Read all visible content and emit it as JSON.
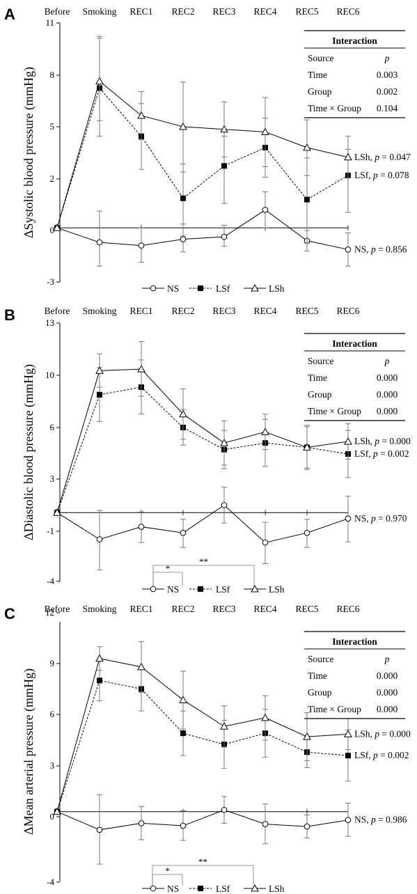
{
  "chart_data": [
    {
      "type": "line",
      "panel_label": "A",
      "ylabel": "ΔSystolic blood pressure (mmHg)",
      "categories": [
        "Before",
        "Smoking",
        "REC1",
        "REC2",
        "REC3",
        "REC4",
        "REC5",
        "REC6"
      ],
      "ylim": [
        -3,
        11
      ],
      "yticks": [
        "-3",
        "0",
        "2",
        "5",
        "8",
        "11"
      ],
      "ytick_values": [
        -3,
        0.25,
        2.25,
        5.25,
        8.25,
        11
      ],
      "reference_line": 0.35,
      "series": [
        {
          "name": "NS",
          "marker": "circle",
          "dash": "solid",
          "values": [
            0.35,
            -0.5,
            -0.7,
            -0.3,
            -0.15,
            1.05,
            -0.4,
            -0.95
          ],
          "errors": [
            0,
            1.5,
            1.05,
            0.8,
            0.6,
            0.7,
            0.65,
            1.05
          ],
          "end_label": "NS, p = 0.856"
        },
        {
          "name": "LSf",
          "marker": "square",
          "dash": "dashed",
          "values": [
            0.35,
            7.5,
            4.7,
            1.5,
            3.0,
            4.05,
            1.45,
            2.45
          ],
          "errors": [
            0,
            2.8,
            1.9,
            1.6,
            1.7,
            1.7,
            2.0,
            1.5
          ],
          "end_label": "LSf, p = 0.078"
        },
        {
          "name": "LSh",
          "marker": "triangle",
          "dash": "solid",
          "values": [
            0.35,
            7.9,
            5.9,
            5.25,
            5.1,
            4.95,
            4.05,
            3.5
          ],
          "errors": [
            0,
            2.3,
            1.4,
            2.6,
            1.6,
            2.0,
            1.6,
            1.2
          ],
          "end_label": "LSh, p = 0.047"
        }
      ],
      "legend": [
        "NS",
        "LSf",
        "LSh"
      ],
      "table": {
        "title": "Interaction",
        "header": [
          "Source",
          "p"
        ],
        "rows": [
          [
            "Time",
            "0.003"
          ],
          [
            "Group",
            "0.002"
          ],
          [
            "Time × Group",
            "0.104"
          ]
        ]
      }
    },
    {
      "type": "line",
      "panel_label": "B",
      "ylabel": "ΔDiastolic blood pressure (mmHg)",
      "categories": [
        "Before",
        "Smoking",
        "REC1",
        "REC2",
        "REC3",
        "REC4",
        "REC5",
        "REC6"
      ],
      "ylim": [
        -4,
        13
      ],
      "yticks": [
        "-4",
        "-1",
        "3",
        "6",
        "10",
        "13"
      ],
      "ytick_values": [
        -4,
        -0.9,
        2.6,
        6.1,
        9.6,
        13
      ],
      "reference_line": 0.35,
      "series": [
        {
          "name": "NS",
          "marker": "circle",
          "dash": "solid",
          "values": [
            0.35,
            -1.4,
            -0.6,
            -1.0,
            0.85,
            -1.6,
            -1.0,
            -0.05
          ],
          "errors": [
            0,
            1.9,
            1.0,
            0.9,
            1.2,
            1.3,
            0.9,
            1.5
          ],
          "end_label": "NS, p = 0.970"
        },
        {
          "name": "LSf",
          "marker": "square",
          "dash": "dashed",
          "values": [
            0.35,
            8.3,
            8.8,
            6.1,
            4.6,
            5.05,
            4.75,
            4.3
          ],
          "errors": [
            0,
            1.8,
            1.8,
            1.2,
            1.3,
            1.6,
            1.4,
            1.6
          ],
          "end_label": "LSf, p = 0.002"
        },
        {
          "name": "LSh",
          "marker": "triangle",
          "dash": "solid",
          "values": [
            0.35,
            9.9,
            10.0,
            7.0,
            5.05,
            5.8,
            4.75,
            5.15
          ],
          "errors": [
            0,
            1.1,
            1.8,
            1.7,
            1.5,
            1.2,
            1.5,
            1.2
          ],
          "end_label": "LSh, p = 0.000"
        }
      ],
      "legend": [
        "NS",
        "LSf",
        "LSh"
      ],
      "significance": [
        "*",
        "**"
      ],
      "table": {
        "title": "Interaction",
        "header": [
          "Source",
          "p"
        ],
        "rows": [
          [
            "Time",
            "0.000"
          ],
          [
            "Group",
            "0.000"
          ],
          [
            "Time × Group",
            "0.000"
          ]
        ]
      }
    },
    {
      "type": "line",
      "panel_label": "C",
      "ylabel": "ΔMean arterial pressure (mmHg)",
      "categories": [
        "Before",
        "Smoking",
        "REC1",
        "REC2",
        "REC3",
        "REC4",
        "REC5",
        "REC6"
      ],
      "ylim": [
        -4,
        12
      ],
      "yticks": [
        "-4",
        "0",
        "3",
        "6",
        "9",
        "12"
      ],
      "ytick_values": [
        -4,
        0,
        3,
        6,
        9,
        12
      ],
      "reference_line": 0.3,
      "series": [
        {
          "name": "NS",
          "marker": "circle",
          "dash": "solid",
          "values": [
            0.3,
            -0.8,
            -0.4,
            -0.55,
            0.4,
            -0.45,
            -0.6,
            -0.2
          ],
          "errors": [
            0,
            2.1,
            1.0,
            0.9,
            0.8,
            1.2,
            0.7,
            1.0
          ],
          "end_label": "NS, p = 0.986"
        },
        {
          "name": "LSf",
          "marker": "square",
          "dash": "dashed",
          "values": [
            0.3,
            8.0,
            7.5,
            4.9,
            4.25,
            4.9,
            3.8,
            3.6
          ],
          "errors": [
            0,
            1.2,
            1.3,
            1.3,
            1.4,
            1.4,
            0.9,
            1.5
          ],
          "end_label": "LSf, p = 0.002"
        },
        {
          "name": "LSh",
          "marker": "triangle",
          "dash": "solid",
          "values": [
            0.3,
            9.3,
            8.8,
            6.85,
            5.3,
            5.8,
            4.7,
            4.85
          ],
          "errors": [
            0,
            0.7,
            1.5,
            1.7,
            1.2,
            1.3,
            1.4,
            0.9
          ],
          "end_label": "LSh, p = 0.000"
        }
      ],
      "legend": [
        "NS",
        "LSf",
        "LSh"
      ],
      "significance": [
        "*",
        "**"
      ],
      "table": {
        "title": "Interaction",
        "header": [
          "Source",
          "p"
        ],
        "rows": [
          [
            "Time",
            "0.000"
          ],
          [
            "Group",
            "0.000"
          ],
          [
            "Time × Group",
            "0.000"
          ]
        ]
      }
    }
  ]
}
